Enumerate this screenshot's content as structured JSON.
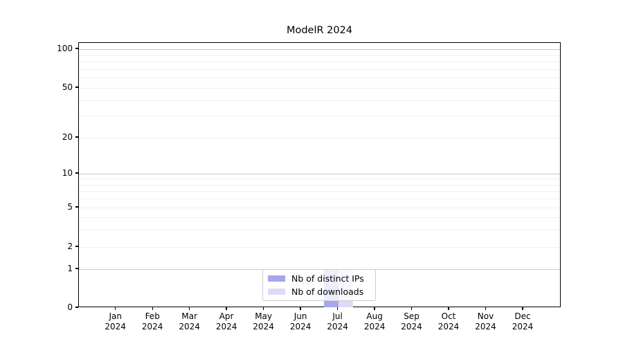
{
  "chart": {
    "title": "ModelR 2024"
  },
  "chart_data": {
    "type": "bar",
    "title": "ModelR 2024",
    "categories": [
      "Jan 2024",
      "Feb 2024",
      "Mar 2024",
      "Apr 2024",
      "May 2024",
      "Jun 2024",
      "Jul 2024",
      "Aug 2024",
      "Sep 2024",
      "Oct 2024",
      "Nov 2024",
      "Dec 2024"
    ],
    "x_tick_labels": [
      {
        "month": "Jan",
        "year": "2024"
      },
      {
        "month": "Feb",
        "year": "2024"
      },
      {
        "month": "Mar",
        "year": "2024"
      },
      {
        "month": "Apr",
        "year": "2024"
      },
      {
        "month": "May",
        "year": "2024"
      },
      {
        "month": "Jun",
        "year": "2024"
      },
      {
        "month": "Jul",
        "year": "2024"
      },
      {
        "month": "Aug",
        "year": "2024"
      },
      {
        "month": "Sep",
        "year": "2024"
      },
      {
        "month": "Oct",
        "year": "2024"
      },
      {
        "month": "Nov",
        "year": "2024"
      },
      {
        "month": "Dec",
        "year": "2024"
      }
    ],
    "series": [
      {
        "name": "Nb of distinct IPs",
        "color": "#a6a6ec",
        "values": [
          0,
          0,
          0,
          0,
          0,
          0,
          1,
          0,
          0,
          0,
          0,
          0
        ]
      },
      {
        "name": "Nb of downloads",
        "color": "#dcdcf8",
        "values": [
          0,
          0,
          0,
          0,
          0,
          0,
          1,
          0,
          0,
          0,
          0,
          0
        ]
      }
    ],
    "yscale": "symlog",
    "y_tick_values": [
      0,
      1,
      2,
      5,
      10,
      20,
      50,
      100
    ],
    "y_tick_labels": [
      "0",
      "1",
      "2",
      "5",
      "10",
      "20",
      "50",
      "100"
    ],
    "y_major_grid_values": [
      1,
      10,
      100
    ],
    "y_minor_grid_values": [
      2,
      3,
      4,
      5,
      6,
      7,
      8,
      9,
      20,
      30,
      40,
      50,
      60,
      70,
      80,
      90
    ],
    "ylim": [
      0,
      120
    ],
    "grid": "horizontal, major and minor",
    "legend_position": "lower center, inside axes"
  }
}
